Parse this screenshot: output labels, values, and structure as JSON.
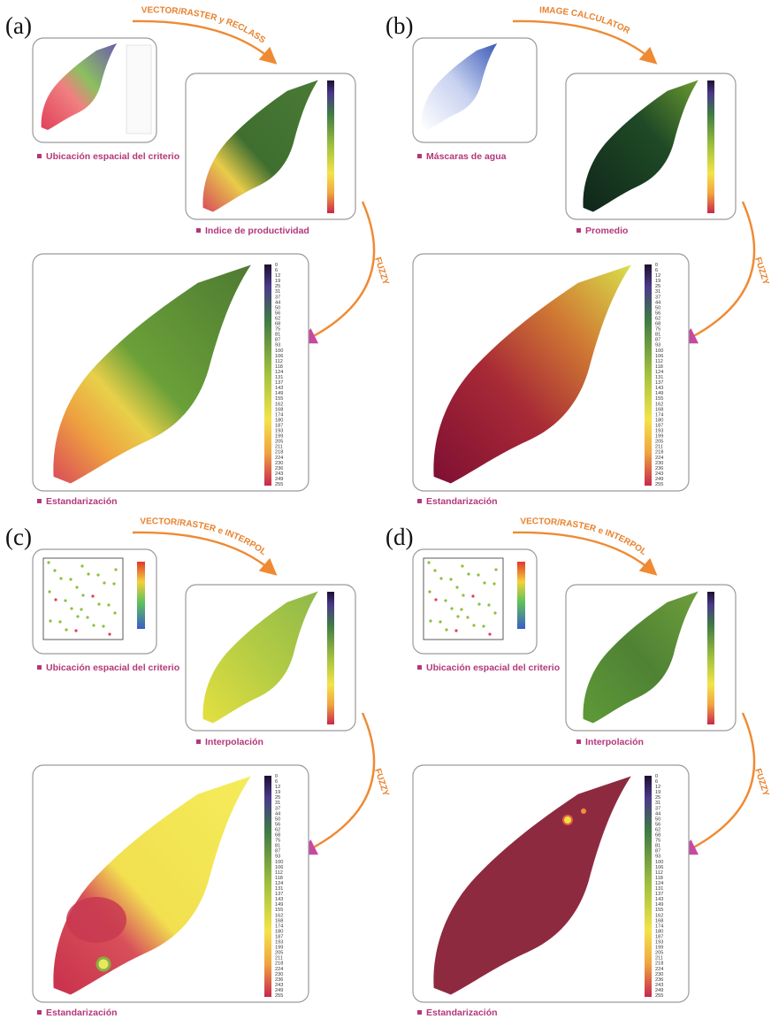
{
  "panels": [
    {
      "label": "(a)",
      "operation": "VECTOR/RASTER y RECLASS",
      "fuzzy": "FUZZY",
      "captions": [
        "Ubicación espacial del criterio",
        "Indice de productividad",
        "Estandarización"
      ]
    },
    {
      "label": "(b)",
      "operation": "IMAGE CALCULATOR",
      "fuzzy": "FUZZY",
      "captions": [
        "Máscaras de agua",
        "Promedio",
        "Estandarización"
      ]
    },
    {
      "label": "(c)",
      "operation": "VECTOR/RASTER e INTERPOL",
      "fuzzy": "FUZZY",
      "captions": [
        "Ubicación espacial del criterio",
        "Interpolación",
        "Estandarización"
      ]
    },
    {
      "label": "(d)",
      "operation": "VECTOR/RASTER e INTERPOL",
      "fuzzy": "FUZZY",
      "captions": [
        "Ubicación espacial del criterio",
        "Interpolación",
        "Estandarización"
      ]
    }
  ],
  "legend_scale": [
    "0",
    "6",
    "12",
    "19",
    "25",
    "31",
    "37",
    "44",
    "50",
    "56",
    "62",
    "68",
    "75",
    "81",
    "87",
    "93",
    "100",
    "106",
    "112",
    "118",
    "124",
    "131",
    "137",
    "143",
    "149",
    "155",
    "162",
    "168",
    "174",
    "180",
    "187",
    "193",
    "199",
    "205",
    "211",
    "218",
    "224",
    "230",
    "236",
    "243",
    "249",
    "255"
  ]
}
